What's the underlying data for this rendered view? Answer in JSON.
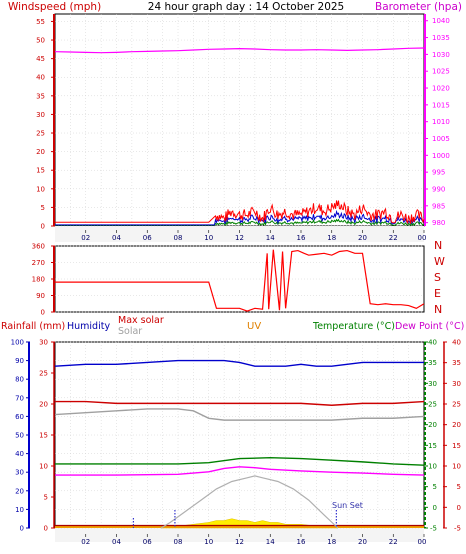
{
  "header": {
    "title": "24 hour graph day : 14 October 2025",
    "left_label": "Windspeed (mph)",
    "right_label": "Barometer (hpa)"
  },
  "colors": {
    "wind": "#ff0000",
    "gust": "#0000cc",
    "windavg": "#008000",
    "barometer": "#ff00ff",
    "humidity": "#0000cc",
    "maxsolar": "#cc0000",
    "solar": "#a0a0a0",
    "uv": "#e08000",
    "temperature": "#008000",
    "dewpoint": "#ff00ff",
    "rain": "#cc0000",
    "axis_gray": "#9a9a9a",
    "dark_red": "#aa0000",
    "uv_fill": "#ffee00"
  },
  "hour_labels": [
    "02",
    "04",
    "06",
    "08",
    "10",
    "12",
    "14",
    "16",
    "18",
    "20",
    "22",
    "00"
  ],
  "compass": [
    "N",
    "W",
    "S",
    "E",
    "N"
  ],
  "middle_legend": {
    "rain": "Rainfall (mm)",
    "humidity": "Humidity",
    "maxsolar": "Max solar",
    "solar": "Solar",
    "uv": "UV",
    "temperature": "Temperature (°C)",
    "dewpoint": "Dew Point (°C)"
  },
  "sunset_label": "Sun Set",
  "chart_data": [
    {
      "type": "line",
      "xlabel": "",
      "x_ticks": [
        "02",
        "04",
        "06",
        "08",
        "10",
        "12",
        "14",
        "16",
        "18",
        "20",
        "22",
        "00"
      ],
      "y_left_label": "Windspeed (mph)",
      "y_left_ticks": [
        0,
        5,
        10,
        15,
        20,
        25,
        30,
        35,
        40,
        45,
        50,
        55
      ],
      "ylim_left": [
        0,
        57
      ],
      "y_right_label": "Barometer (hpa)",
      "y_right_ticks": [
        980,
        985,
        990,
        995,
        1000,
        1005,
        1010,
        1015,
        1020,
        1025,
        1030,
        1035,
        1040
      ],
      "ylim_right": [
        979,
        1042
      ],
      "grid": true,
      "series": [
        {
          "name": "Barometer (hpa)",
          "axis": "right",
          "x": [
            0,
            1,
            2,
            3,
            4,
            5,
            6,
            7,
            8,
            9,
            10,
            11,
            12,
            13,
            14,
            15,
            16,
            17,
            18,
            19,
            20,
            21,
            22,
            23,
            24
          ],
          "values": [
            1030.8,
            1030.7,
            1030.6,
            1030.5,
            1030.6,
            1030.8,
            1030.9,
            1031.0,
            1031.1,
            1031.3,
            1031.5,
            1031.6,
            1031.7,
            1031.6,
            1031.4,
            1031.3,
            1031.3,
            1031.4,
            1031.3,
            1031.2,
            1031.3,
            1031.4,
            1031.6,
            1031.8,
            1031.9
          ]
        },
        {
          "name": "Windspeed (mph)",
          "axis": "left",
          "x": [
            0,
            1,
            2,
            3,
            4,
            5,
            6,
            7,
            8,
            9,
            10,
            10.5,
            11,
            11.5,
            12,
            12.5,
            13,
            13.5,
            14,
            14.5,
            15,
            15.5,
            16,
            16.5,
            17,
            17.5,
            18,
            18.5,
            19,
            19.5,
            20,
            20.5,
            21,
            21.5,
            22,
            22.5,
            23,
            23.5,
            24
          ],
          "values": [
            1,
            1,
            1,
            1,
            1,
            1,
            1,
            1,
            1,
            1,
            1,
            3,
            2,
            4,
            3,
            3,
            4,
            2,
            5,
            3,
            4,
            3,
            3,
            4,
            5,
            4,
            5,
            6,
            4,
            3,
            5,
            3,
            3,
            4,
            2,
            3,
            2,
            3,
            2
          ]
        }
      ]
    },
    {
      "type": "line",
      "y_ticks": [
        0,
        90,
        180,
        270,
        360
      ],
      "ylim": [
        0,
        360
      ],
      "x_ticks": [
        "02",
        "04",
        "06",
        "08",
        "10",
        "12",
        "14",
        "16",
        "18",
        "20",
        "22",
        "00"
      ],
      "series": [
        {
          "name": "",
          "x": [
            0,
            10,
            10.5,
            11,
            12,
            12.5,
            13,
            13.5,
            13.8,
            13.9,
            14.2,
            14.6,
            14.8,
            15.0,
            15.4,
            15.8,
            16.2,
            16.5,
            17,
            17.5,
            18,
            18.5,
            19,
            19.5,
            20,
            20.5,
            21,
            21.5,
            22,
            22.5,
            23,
            23.5,
            24
          ],
          "values": [
            163,
            163,
            20,
            20,
            20,
            5,
            20,
            15,
            320,
            15,
            340,
            10,
            330,
            20,
            330,
            335,
            320,
            310,
            315,
            320,
            310,
            330,
            335,
            320,
            320,
            45,
            40,
            45,
            40,
            40,
            35,
            20,
            45
          ]
        }
      ]
    },
    {
      "type": "line",
      "x_ticks": [
        "02",
        "04",
        "06",
        "08",
        "10",
        "12",
        "14",
        "16",
        "18",
        "20",
        "22",
        "00"
      ],
      "y_left_label": "Rainfall (mm)",
      "y_left_ticks": [
        0,
        5,
        10,
        15,
        20,
        25,
        30
      ],
      "ylim_left": [
        0,
        30
      ],
      "y_left2_label": "Humidity",
      "y_left2_ticks": [
        0,
        10,
        20,
        30,
        40,
        50,
        60,
        70,
        80,
        90,
        100
      ],
      "ylim_left2": [
        0,
        100
      ],
      "y_right_label": "Temperature (°C)",
      "y_right_ticks": [
        -5,
        0,
        5,
        10,
        15,
        20,
        25,
        30,
        35,
        40
      ],
      "ylim_right": [
        -5,
        40
      ],
      "y_right2_label": "Dew Point (°C)",
      "y_right2_ticks": [
        -5,
        0,
        5,
        10,
        15,
        20,
        25,
        30,
        35,
        40
      ],
      "ylim_right2": [
        -5,
        40
      ],
      "grid": true,
      "series": [
        {
          "name": "Humidity",
          "axis": "humidity",
          "x": [
            0,
            2,
            4,
            6,
            8,
            10,
            11,
            12,
            13,
            14,
            15,
            16,
            17,
            18,
            19,
            20,
            21,
            22,
            23,
            24
          ],
          "values": [
            87,
            88,
            88,
            89,
            90,
            90,
            90,
            89,
            87,
            87,
            87,
            88,
            87,
            87,
            88,
            89,
            89,
            89,
            89,
            89
          ]
        },
        {
          "name": "Max solar",
          "axis": "humidity",
          "x": [
            0,
            2,
            4,
            6,
            8,
            10,
            12,
            14,
            16,
            18,
            20,
            22,
            24
          ],
          "values": [
            68,
            68,
            67,
            67,
            67,
            67,
            67,
            67,
            67,
            66,
            67,
            67,
            68
          ]
        },
        {
          "name": "Solar",
          "axis": "humidity",
          "x": [
            0,
            2,
            4,
            6,
            8,
            9,
            10,
            11,
            12,
            14,
            16,
            18,
            20,
            22,
            24
          ],
          "values": [
            61,
            62,
            63,
            64,
            64,
            63,
            59,
            58,
            58,
            58,
            58,
            58,
            59,
            59,
            60
          ]
        },
        {
          "name": "Temperature (°C)",
          "axis": "temp",
          "x": [
            0,
            2,
            4,
            6,
            8,
            10,
            12,
            14,
            16,
            18,
            20,
            22,
            24
          ],
          "values": [
            10.5,
            10.5,
            10.5,
            10.5,
            10.5,
            10.8,
            11.8,
            12.0,
            11.8,
            11.4,
            11.0,
            10.5,
            10.2
          ]
        },
        {
          "name": "Dew Point (°C)",
          "axis": "temp",
          "x": [
            0,
            2,
            4,
            6,
            8,
            10,
            11,
            12,
            13,
            14,
            16,
            18,
            20,
            22,
            24
          ],
          "values": [
            7.8,
            7.8,
            7.8,
            7.9,
            8.0,
            8.6,
            9.4,
            9.8,
            9.6,
            9.2,
            8.8,
            8.5,
            8.3,
            8.0,
            7.8
          ]
        },
        {
          "name": "Max solar curve",
          "axis": "humidity",
          "x": [
            6.9,
            7.5,
            8.5,
            9.5,
            10.5,
            11.5,
            12.5,
            13,
            13.5,
            14.5,
            15.5,
            16.5,
            17.5,
            18.4
          ],
          "values": [
            0,
            3,
            9,
            15,
            21,
            25,
            27,
            28,
            27,
            25,
            21,
            15,
            7,
            0
          ]
        },
        {
          "name": "UV",
          "axis": "humidity",
          "x": [
            6.9,
            8,
            9,
            10,
            10.5,
            11,
            11.5,
            12,
            12.5,
            13,
            13.5,
            14,
            14.5,
            15,
            16,
            17,
            18.4
          ],
          "values": [
            0,
            1,
            2,
            3,
            4,
            4,
            5,
            4,
            4,
            3,
            4,
            3,
            3,
            2,
            2,
            1,
            0
          ]
        }
      ],
      "annotations": [
        "Sun Set"
      ]
    }
  ]
}
